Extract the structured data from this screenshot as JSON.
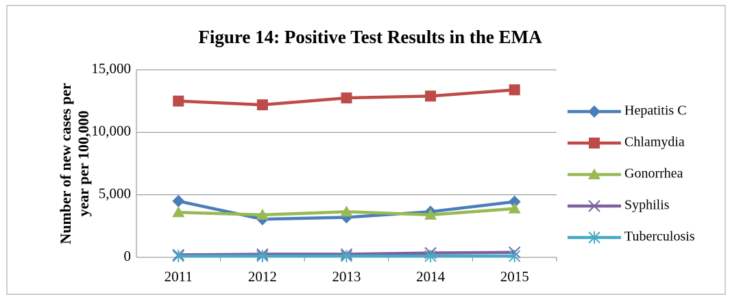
{
  "chart_data": {
    "type": "line",
    "title": "Figure 14: Positive Test Results in the EMA",
    "y_label": [
      "Number of new cases per",
      "year per 100,000"
    ],
    "categories": [
      "2011",
      "2012",
      "2013",
      "2014",
      "2015"
    ],
    "series": [
      {
        "name": "Hepatitis C",
        "color": "#4a7ebb",
        "marker": "diamond",
        "values": [
          4500,
          3050,
          3200,
          3650,
          4450
        ]
      },
      {
        "name": "Chlamydia",
        "color": "#be4b48",
        "marker": "square",
        "values": [
          12500,
          12200,
          12750,
          12900,
          13400
        ]
      },
      {
        "name": "Gonorrhea",
        "color": "#98b954",
        "marker": "triangle",
        "values": [
          3600,
          3400,
          3650,
          3400,
          3900
        ]
      },
      {
        "name": "Syphilis",
        "color": "#7d60a0",
        "marker": "x",
        "values": [
          200,
          250,
          250,
          350,
          400
        ]
      },
      {
        "name": "Tuberculosis",
        "color": "#46aac5",
        "marker": "asterisk",
        "values": [
          100,
          100,
          100,
          100,
          100
        ]
      }
    ],
    "ylim": [
      0,
      15000
    ],
    "yticks": [
      0,
      {
        "value": 5000,
        "label": "5,000"
      },
      {
        "value": 10000,
        "label": "10,000"
      },
      {
        "value": 15000,
        "label": "15,000"
      }
    ],
    "grid": true,
    "legend": "right"
  }
}
